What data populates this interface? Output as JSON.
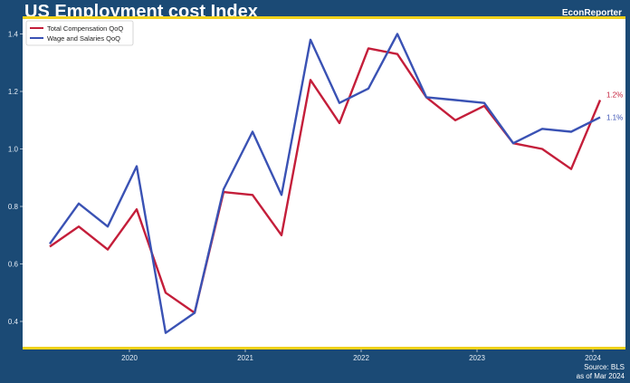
{
  "header": {
    "title": "US Employment cost Index",
    "brand": "EconReporter"
  },
  "footer": {
    "source": "Source: BLS",
    "asof": "as of Mar 2024"
  },
  "colors": {
    "background": "#1b4a75",
    "accent": "#f2d21b",
    "plot_bg": "#ffffff",
    "total_comp": "#c41e3a",
    "wages": "#3a52b4"
  },
  "chart_data": {
    "type": "line",
    "title": "US Employment cost Index",
    "xlabel": "",
    "ylabel": "",
    "x": [
      "2019-Q2",
      "2019-Q3",
      "2019-Q4",
      "2020-Q1",
      "2020-Q2",
      "2020-Q3",
      "2020-Q4",
      "2021-Q1",
      "2021-Q2",
      "2021-Q3",
      "2021-Q4",
      "2022-Q1",
      "2022-Q2",
      "2022-Q3",
      "2022-Q4",
      "2023-Q1",
      "2023-Q2",
      "2023-Q3",
      "2023-Q4",
      "2024-Q1"
    ],
    "xticks": [
      "2020",
      "2021",
      "2022",
      "2023",
      "2024"
    ],
    "yticks": [
      "0.4",
      "0.6",
      "0.8",
      "1.0",
      "1.2",
      "1.4"
    ],
    "ylim": [
      0.3,
      1.45
    ],
    "grid": false,
    "legend": "top-left",
    "series": [
      {
        "name": "Total Compensation QoQ",
        "end_label": "1.2%",
        "values": [
          0.66,
          0.73,
          0.65,
          0.79,
          0.5,
          0.43,
          0.85,
          0.84,
          0.7,
          1.24,
          1.09,
          1.35,
          1.33,
          1.18,
          1.1,
          1.15,
          1.02,
          1.0,
          0.93,
          1.17
        ]
      },
      {
        "name": "Wage and Salaries QoQ",
        "end_label": "1.1%",
        "values": [
          0.67,
          0.81,
          0.73,
          0.94,
          0.36,
          0.43,
          0.86,
          1.06,
          0.84,
          1.38,
          1.16,
          1.21,
          1.4,
          1.18,
          1.17,
          1.16,
          1.02,
          1.07,
          1.06,
          1.11
        ]
      }
    ]
  }
}
